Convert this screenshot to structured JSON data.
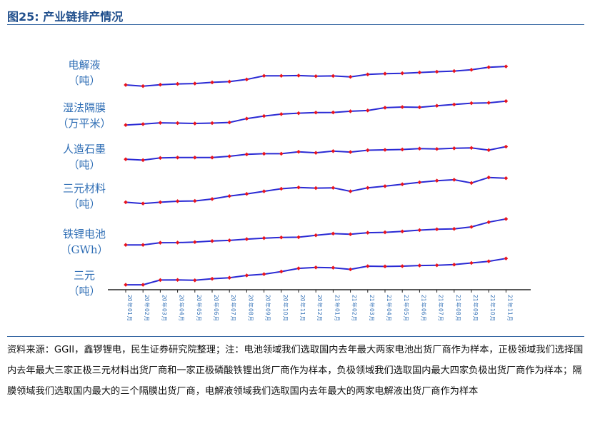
{
  "figure": {
    "title": "图25: 产业链排产情况",
    "note": "资料来源：GGII，鑫锣锂电，民生证券研究院整理；注：电池领域我们选取国内去年最大两家电池出货厂商作为样本，正极领域我们选择国内去年最大三家正极三元材料出货厂商和一家正极磷酸铁锂出货厂商作为样本，负极领域我们选取国内最大四家负极出货厂商作为样本；隔膜领域我们选取国内最大的三个隔膜出货厂商，电解液领域我们选取国内去年最大的两家电解液出货厂商作为样本"
  },
  "colors": {
    "line": "#2a2ad4",
    "marker": "#e8141e",
    "label": "#2f6eb5",
    "accent": "#1f4e8c"
  },
  "chart_data": {
    "type": "line",
    "categories": [
      "20年01月",
      "20年02月",
      "20年03月",
      "20年04月",
      "20年05月",
      "20年06月",
      "20年07月",
      "20年08月",
      "20年09月",
      "20年10月",
      "20年11月",
      "20年12月",
      "21年01月",
      "21年02月",
      "21年03月",
      "21年04月",
      "21年05月",
      "21年06月",
      "21年07月",
      "21年08月",
      "21年09月",
      "21年10月",
      "21年11月"
    ],
    "tick_labels": [
      {
        "year": "20",
        "unit": "年",
        "month": "01",
        "month_unit": "月"
      },
      {
        "year": "20",
        "unit": "年",
        "month": "02",
        "month_unit": "月"
      },
      {
        "year": "20",
        "unit": "年",
        "month": "03",
        "month_unit": "月"
      },
      {
        "year": "20",
        "unit": "年",
        "month": "04",
        "month_unit": "月"
      },
      {
        "year": "20",
        "unit": "年",
        "month": "05",
        "month_unit": "月"
      },
      {
        "year": "20",
        "unit": "年",
        "month": "06",
        "month_unit": "月"
      },
      {
        "year": "20",
        "unit": "年",
        "month": "07",
        "month_unit": "月"
      },
      {
        "year": "20",
        "unit": "年",
        "month": "08",
        "month_unit": "月"
      },
      {
        "year": "20",
        "unit": "年",
        "month": "09",
        "month_unit": "月"
      },
      {
        "year": "20",
        "unit": "年",
        "month": "10",
        "month_unit": "月"
      },
      {
        "year": "20",
        "unit": "年",
        "month": "11",
        "month_unit": "月"
      },
      {
        "year": "20",
        "unit": "年",
        "month": "12",
        "month_unit": "月"
      },
      {
        "year": "21",
        "unit": "年",
        "month": "01",
        "month_unit": "月"
      },
      {
        "year": "21",
        "unit": "年",
        "month": "02",
        "month_unit": "月"
      },
      {
        "year": "21",
        "unit": "年",
        "month": "03",
        "month_unit": "月"
      },
      {
        "year": "21",
        "unit": "年",
        "month": "04",
        "month_unit": "月"
      },
      {
        "year": "21",
        "unit": "年",
        "month": "05",
        "month_unit": "月"
      },
      {
        "year": "21",
        "unit": "年",
        "month": "06",
        "month_unit": "月"
      },
      {
        "year": "21",
        "unit": "年",
        "month": "07",
        "month_unit": "月"
      },
      {
        "year": "21",
        "unit": "年",
        "month": "08",
        "month_unit": "月"
      },
      {
        "year": "21",
        "unit": "年",
        "month": "09",
        "month_unit": "月"
      },
      {
        "year": "21",
        "unit": "年",
        "month": "10",
        "month_unit": "月"
      },
      {
        "year": "21",
        "unit": "年",
        "month": "11",
        "month_unit": "月"
      }
    ],
    "y_axis_shown": false,
    "grid": false,
    "legend": "none",
    "relative_scale": [
      0,
      1
    ],
    "series": [
      {
        "name": "电解液",
        "unit": "（吨）",
        "values": [
          0.22,
          0.13,
          0.24,
          0.3,
          0.33,
          0.42,
          0.48,
          0.65,
          0.93,
          0.93,
          0.95,
          0.9,
          0.92,
          0.85,
          1.04,
          1.1,
          1.13,
          1.19,
          1.25,
          1.3,
          1.4,
          1.6,
          1.66
        ]
      },
      {
        "name": "湿法隔膜",
        "unit": "（万平米）",
        "values": [
          0.1,
          0.17,
          0.27,
          0.25,
          0.22,
          0.25,
          0.3,
          0.6,
          0.8,
          0.95,
          1.02,
          1.07,
          1.08,
          1.17,
          1.23,
          1.45,
          1.5,
          1.48,
          1.6,
          1.7,
          1.8,
          1.83,
          1.96
        ]
      },
      {
        "name": "人造石墨",
        "unit": "（吨）",
        "values": [
          0.27,
          0.2,
          0.37,
          0.4,
          0.4,
          0.4,
          0.5,
          0.65,
          0.7,
          0.7,
          0.85,
          0.77,
          0.9,
          0.83,
          0.97,
          1.0,
          1.03,
          1.1,
          1.07,
          1.12,
          1.15,
          0.98,
          1.25
        ]
      },
      {
        "name": "三元材料",
        "unit": "（吨）",
        "values": [
          0.2,
          0.1,
          0.2,
          0.28,
          0.3,
          0.45,
          0.68,
          0.85,
          1.05,
          1.25,
          1.35,
          1.3,
          1.32,
          1.05,
          1.32,
          1.45,
          1.6,
          1.75,
          1.88,
          1.95,
          1.7,
          2.13,
          2.07
        ]
      },
      {
        "name": "铁锂电池",
        "unit": "（GWh）",
        "values": [
          0.1,
          0.1,
          0.27,
          0.28,
          0.32,
          0.4,
          0.45,
          0.55,
          0.63,
          0.68,
          0.7,
          0.85,
          0.98,
          0.93,
          1.05,
          1.08,
          1.15,
          1.25,
          1.32,
          1.35,
          1.5,
          1.87,
          2.12
        ]
      },
      {
        "name": "三元",
        "unit": "（吨）",
        "values": [
          0.05,
          0.05,
          0.42,
          0.43,
          0.4,
          0.52,
          0.6,
          0.78,
          0.88,
          1.08,
          1.33,
          1.4,
          1.38,
          1.25,
          1.5,
          1.48,
          1.5,
          1.55,
          1.57,
          1.62,
          1.75,
          1.88,
          2.1
        ]
      }
    ]
  }
}
